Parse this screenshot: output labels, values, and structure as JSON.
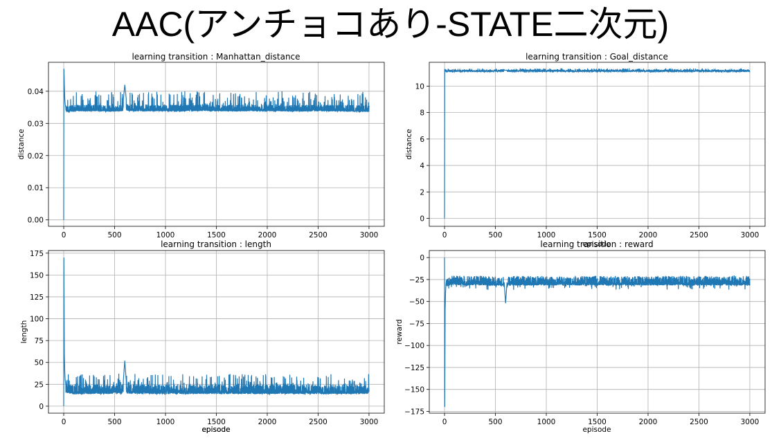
{
  "slide_title": "AAC(アンチョコあり-STATE二次元)",
  "colors": {
    "series": "#1f77b4",
    "grid": "#b0b0b0",
    "axis": "#000000"
  },
  "chart_data": [
    {
      "id": "manhattan",
      "type": "line",
      "title": "learning transition : Manhattan_distance",
      "xlabel": "episode",
      "ylabel": "distance",
      "xlim": [
        -150,
        3150
      ],
      "ylim": [
        -0.002,
        0.049
      ],
      "xticks": [
        0,
        500,
        1000,
        1500,
        2000,
        2500,
        3000
      ],
      "yticks": [
        0.0,
        0.01,
        0.02,
        0.03,
        0.04
      ],
      "ytick_labels": [
        "0.00",
        "0.01",
        "0.02",
        "0.03",
        "0.04"
      ],
      "grid": true,
      "series": [
        {
          "x": [
            0,
            2,
            4,
            6,
            10,
            14,
            20,
            40,
            80,
            150,
            300,
            500,
            580,
            600,
            620,
            700,
            900,
            1100,
            1300,
            1500,
            1700,
            1800,
            1900,
            2100,
            2300,
            2500,
            2700,
            2900,
            3000
          ],
          "y": [
            0.0,
            0.047,
            0.045,
            0.042,
            0.038,
            0.036,
            0.035,
            0.0345,
            0.035,
            0.0355,
            0.0355,
            0.035,
            0.0355,
            0.042,
            0.036,
            0.0355,
            0.0355,
            0.0352,
            0.0355,
            0.0355,
            0.0352,
            0.0355,
            0.0355,
            0.0355,
            0.0352,
            0.0355,
            0.0352,
            0.0348,
            0.035
          ],
          "band": {
            "start": 20,
            "min": 0.033,
            "max": 0.038,
            "spike_max": 0.042
          }
        }
      ]
    },
    {
      "id": "goal",
      "type": "line",
      "title": "learning transition : Goal_distance",
      "xlabel": "episode",
      "ylabel": "distance",
      "xlim": [
        -150,
        3150
      ],
      "ylim": [
        -0.6,
        11.8
      ],
      "xticks": [
        0,
        500,
        1000,
        1500,
        2000,
        2500,
        3000
      ],
      "yticks": [
        0,
        2,
        4,
        6,
        8,
        10
      ],
      "ytick_labels": [
        "0",
        "2",
        "4",
        "6",
        "8",
        "10"
      ],
      "grid": true,
      "series": [
        {
          "x": [
            0,
            2,
            4,
            8,
            20,
            100,
            500,
            1000,
            1500,
            2000,
            2500,
            3000
          ],
          "y": [
            0.0,
            11.3,
            11.2,
            11.25,
            11.2,
            11.2,
            11.2,
            11.2,
            11.2,
            11.2,
            11.2,
            11.2
          ],
          "band": {
            "start": 4,
            "min": 11.05,
            "max": 11.4,
            "spike_max": 11.4
          }
        }
      ]
    },
    {
      "id": "length",
      "type": "line",
      "title": "learning transition : length",
      "xlabel": "episode",
      "ylabel": "length",
      "xlim": [
        -150,
        3150
      ],
      "ylim": [
        -8,
        178
      ],
      "xticks": [
        0,
        500,
        1000,
        1500,
        2000,
        2500,
        3000
      ],
      "yticks": [
        0,
        25,
        50,
        75,
        100,
        125,
        150,
        175
      ],
      "ytick_labels": [
        "0",
        "25",
        "50",
        "75",
        "100",
        "125",
        "150",
        "175"
      ],
      "grid": true,
      "series": [
        {
          "x": [
            0,
            2,
            4,
            6,
            10,
            14,
            20,
            30,
            60,
            100,
            200,
            400,
            580,
            600,
            620,
            800,
            1000,
            1200,
            1400,
            1600,
            1800,
            2000,
            2200,
            2400,
            2600,
            2800,
            3000
          ],
          "y": [
            0,
            170,
            120,
            60,
            40,
            30,
            25,
            20,
            18,
            17,
            18,
            18,
            20,
            52,
            20,
            18,
            18,
            18,
            18,
            18,
            18,
            18,
            18,
            18,
            18,
            18,
            18
          ],
          "band": {
            "start": 20,
            "min": 12,
            "max": 38,
            "spike_max": 45
          }
        }
      ]
    },
    {
      "id": "reward",
      "type": "line",
      "title": "learning transition : reward",
      "xlabel": "episode",
      "ylabel": "reward",
      "xlim": [
        -150,
        3150
      ],
      "ylim": [
        -177,
        8
      ],
      "xticks": [
        0,
        500,
        1000,
        1500,
        2000,
        2500,
        3000
      ],
      "yticks": [
        0,
        -25,
        -50,
        -75,
        -100,
        -125,
        -150,
        -175
      ],
      "ytick_labels": [
        "0",
        "−25",
        "−50",
        "−75",
        "−100",
        "−125",
        "−150",
        "−175"
      ],
      "grid": true,
      "series": [
        {
          "x": [
            0,
            2,
            4,
            6,
            10,
            14,
            20,
            30,
            60,
            100,
            200,
            400,
            580,
            600,
            620,
            800,
            1000,
            1200,
            1400,
            1600,
            1800,
            2000,
            2200,
            2400,
            2600,
            2800,
            3000
          ],
          "y": [
            0,
            -170,
            -120,
            -60,
            -40,
            -30,
            -25,
            -20,
            -17,
            -16,
            -17,
            -17,
            -18,
            -52,
            -18,
            -17,
            -17,
            -17,
            -17,
            -17,
            -17,
            -17,
            -17,
            -17,
            -17,
            -17,
            -17
          ],
          "band": {
            "start": 20,
            "min": -38,
            "max": -12,
            "spike_max": -45
          }
        }
      ]
    }
  ]
}
